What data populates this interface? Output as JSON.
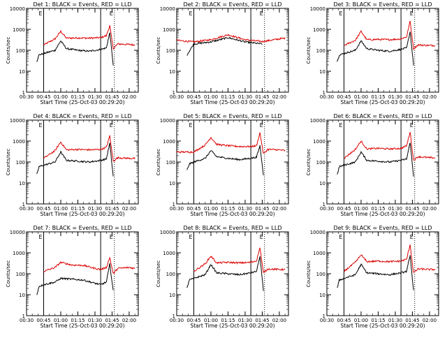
{
  "colors": {
    "events": "#000000",
    "lld": "#dd0000",
    "frame": "#000000"
  },
  "chart_data": [
    {
      "type": "line",
      "title": "Det 1: BLACK = Events, RED = LLD",
      "ylabel": "Counts/sec",
      "xlabel": "Start Time (25-Oct-03 00:29:20)",
      "yscale": "log",
      "ylim": [
        1,
        10000
      ],
      "xlim": [
        "00:30",
        "02:08"
      ],
      "y_ticks": [
        "1",
        "10",
        "100",
        "1000",
        "10000"
      ],
      "x_ticks": [
        "00:30",
        "00:45",
        "01:00",
        "01:15",
        "01:30",
        "01:45",
        "02:00"
      ],
      "markers": {
        "solid": [
          "00:45",
          "01:35"
        ],
        "dotted": [
          "01:47"
        ],
        "labels": [
          "E",
          "E"
        ]
      },
      "series": [
        {
          "color": "#dd0000",
          "x": [
            "00:45",
            "00:55",
            "01:00",
            "01:05",
            "01:15",
            "01:25",
            "01:35",
            "01:40",
            "01:43",
            "01:46",
            "01:50",
            "02:00",
            "02:05"
          ],
          "values": [
            180,
            350,
            800,
            380,
            390,
            380,
            400,
            500,
            1500,
            120,
            200,
            190,
            180
          ]
        },
        {
          "color": "#000000",
          "x": [
            "00:39",
            "00:41",
            "00:45",
            "00:55",
            "01:00",
            "01:05",
            "01:15",
            "01:25",
            "01:35",
            "01:40",
            "01:43",
            "01:46"
          ],
          "values": [
            30,
            60,
            70,
            100,
            280,
            120,
            100,
            90,
            110,
            130,
            700,
            20
          ]
        }
      ]
    },
    {
      "type": "line",
      "title": "Det 2: BLACK = Events, RED = LLD",
      "ylabel": "Counts/sec",
      "xlabel": "Start Time (25-Oct-03 00:29:20)",
      "yscale": "log",
      "ylim": [
        1,
        10000
      ],
      "xlim": [
        "00:30",
        "02:08"
      ],
      "y_ticks": [
        "1",
        "10",
        "100",
        "1000",
        "10000"
      ],
      "x_ticks": [
        "00:30",
        "00:45",
        "01:00",
        "01:15",
        "01:30",
        "01:45",
        "02:00"
      ],
      "markers": {
        "solid": [
          "00:45",
          "01:35"
        ],
        "dotted": [
          "01:47"
        ],
        "labels": [
          "E",
          "E"
        ]
      },
      "series": [
        {
          "color": "#dd0000",
          "x": [
            "00:30",
            "00:45",
            "01:00",
            "01:15",
            "01:30",
            "01:45",
            "02:00",
            "02:05"
          ],
          "values": [
            300,
            250,
            320,
            550,
            320,
            260,
            350,
            380
          ]
        },
        {
          "color": "#000000",
          "x": [
            "00:39",
            "00:45",
            "01:00",
            "01:15",
            "01:30",
            "01:45"
          ],
          "values": [
            60,
            200,
            250,
            400,
            250,
            200
          ]
        }
      ]
    },
    {
      "type": "line",
      "title": "Det 3: BLACK = Events, RED = LLD",
      "ylabel": "Counts/sec",
      "xlabel": "Start Time (25-Oct-03 00:29:20)",
      "yscale": "log",
      "ylim": [
        1,
        10000
      ],
      "xlim": [
        "00:30",
        "02:08"
      ],
      "y_ticks": [
        "1",
        "10",
        "100",
        "1000",
        "10000"
      ],
      "x_ticks": [
        "00:30",
        "00:45",
        "01:00",
        "01:15",
        "01:30",
        "01:45",
        "02:00"
      ],
      "markers": {
        "solid": [
          "00:45",
          "01:35"
        ],
        "dotted": [
          "01:47"
        ],
        "labels": [
          "E",
          "E"
        ]
      },
      "series": [
        {
          "color": "#dd0000",
          "x": [
            "00:45",
            "00:55",
            "01:00",
            "01:05",
            "01:15",
            "01:25",
            "01:35",
            "01:40",
            "01:43",
            "01:46",
            "01:50",
            "02:00",
            "02:05"
          ],
          "values": [
            170,
            300,
            800,
            320,
            330,
            320,
            350,
            450,
            2500,
            120,
            180,
            170,
            170
          ]
        },
        {
          "color": "#000000",
          "x": [
            "00:39",
            "00:41",
            "00:45",
            "00:55",
            "01:00",
            "01:05",
            "01:15",
            "01:25",
            "01:35",
            "01:40",
            "01:43",
            "01:46"
          ],
          "values": [
            30,
            60,
            70,
            100,
            280,
            120,
            100,
            90,
            110,
            130,
            800,
            20
          ]
        }
      ]
    },
    {
      "type": "line",
      "title": "Det 4: BLACK = Events, RED = LLD",
      "ylabel": "Counts/sec",
      "xlabel": "Start Time (25-Oct-03 00:29:20)",
      "yscale": "log",
      "ylim": [
        1,
        10000
      ],
      "xlim": [
        "00:30",
        "02:08"
      ],
      "y_ticks": [
        "1",
        "10",
        "100",
        "1000",
        "10000"
      ],
      "x_ticks": [
        "00:30",
        "00:45",
        "01:00",
        "01:15",
        "01:30",
        "01:45",
        "02:00"
      ],
      "markers": {
        "solid": [
          "00:45",
          "01:35"
        ],
        "dotted": [
          "01:47"
        ],
        "labels": [
          "E",
          "E"
        ]
      },
      "series": [
        {
          "color": "#dd0000",
          "x": [
            "00:45",
            "00:55",
            "01:00",
            "01:05",
            "01:15",
            "01:25",
            "01:35",
            "01:40",
            "01:43",
            "01:46",
            "01:50",
            "02:00",
            "02:05"
          ],
          "values": [
            150,
            350,
            900,
            380,
            400,
            380,
            400,
            500,
            1800,
            110,
            160,
            150,
            150
          ]
        },
        {
          "color": "#000000",
          "x": [
            "00:39",
            "00:41",
            "00:45",
            "00:55",
            "01:00",
            "01:05",
            "01:15",
            "01:25",
            "01:35",
            "01:40",
            "01:43",
            "01:46"
          ],
          "values": [
            25,
            60,
            70,
            100,
            300,
            120,
            110,
            100,
            120,
            140,
            800,
            20
          ]
        }
      ]
    },
    {
      "type": "line",
      "title": "Det 5: BLACK = Events, RED = LLD",
      "ylabel": "Counts/sec",
      "xlabel": "Start Time (25-Oct-03 00:29:20)",
      "yscale": "log",
      "ylim": [
        1,
        10000
      ],
      "xlim": [
        "00:30",
        "02:08"
      ],
      "y_ticks": [
        "1",
        "10",
        "100",
        "1000",
        "10000"
      ],
      "x_ticks": [
        "00:30",
        "00:45",
        "01:00",
        "01:15",
        "01:30",
        "01:45",
        "02:00"
      ],
      "markers": {
        "solid": [
          "00:45",
          "01:35"
        ],
        "dotted": [
          "01:47"
        ],
        "labels": [
          "E",
          "E"
        ]
      },
      "series": [
        {
          "color": "#dd0000",
          "x": [
            "00:30",
            "00:45",
            "00:55",
            "01:00",
            "01:05",
            "01:15",
            "01:25",
            "01:35",
            "01:40",
            "01:43",
            "01:46",
            "01:50",
            "02:00",
            "02:05"
          ],
          "values": [
            300,
            300,
            650,
            1500,
            700,
            600,
            550,
            550,
            600,
            2500,
            250,
            400,
            380,
            350
          ]
        },
        {
          "color": "#000000",
          "x": [
            "00:39",
            "00:41",
            "00:45",
            "00:55",
            "01:00",
            "01:05",
            "01:15",
            "01:25",
            "01:35",
            "01:40",
            "01:43",
            "01:46"
          ],
          "values": [
            40,
            80,
            100,
            150,
            350,
            180,
            150,
            130,
            150,
            170,
            600,
            25
          ]
        }
      ]
    },
    {
      "type": "line",
      "title": "Det 6: BLACK = Events, RED = LLD",
      "ylabel": "Counts/sec",
      "xlabel": "Start Time (25-Oct-03 00:29:20)",
      "yscale": "log",
      "ylim": [
        1,
        10000
      ],
      "xlim": [
        "00:30",
        "02:08"
      ],
      "y_ticks": [
        "1",
        "10",
        "100",
        "1000",
        "10000"
      ],
      "x_ticks": [
        "00:30",
        "00:45",
        "01:00",
        "01:15",
        "01:30",
        "01:45",
        "02:00"
      ],
      "markers": {
        "solid": [
          "00:45",
          "01:35"
        ],
        "dotted": [
          "01:47"
        ],
        "labels": [
          "E",
          "E"
        ]
      },
      "series": [
        {
          "color": "#dd0000",
          "x": [
            "00:45",
            "00:55",
            "01:00",
            "01:05",
            "01:15",
            "01:25",
            "01:35",
            "01:40",
            "01:43",
            "01:46",
            "01:50",
            "02:00",
            "02:05"
          ],
          "values": [
            150,
            400,
            1000,
            420,
            450,
            420,
            450,
            600,
            2800,
            120,
            180,
            160,
            160
          ]
        },
        {
          "color": "#000000",
          "x": [
            "00:39",
            "00:41",
            "00:45",
            "00:55",
            "01:00",
            "01:05",
            "01:15",
            "01:25",
            "01:35",
            "01:40",
            "01:43",
            "01:46"
          ],
          "values": [
            25,
            60,
            70,
            100,
            300,
            120,
            110,
            100,
            120,
            140,
            900,
            20
          ]
        }
      ]
    },
    {
      "type": "line",
      "title": "Det 7: BLACK = Events, RED = LLD",
      "ylabel": "Counts/sec",
      "xlabel": "Start Time (25-Oct-03 00:29:20)",
      "yscale": "log",
      "ylim": [
        1,
        10000
      ],
      "xlim": [
        "00:30",
        "02:08"
      ],
      "y_ticks": [
        "1",
        "10",
        "100",
        "1000",
        "10000"
      ],
      "x_ticks": [
        "00:30",
        "00:45",
        "01:00",
        "01:15",
        "01:30",
        "01:45",
        "02:00"
      ],
      "markers": {
        "solid": [
          "00:45",
          "01:35"
        ],
        "dotted": [
          "01:47"
        ],
        "labels": [
          "E",
          "E"
        ]
      },
      "series": [
        {
          "color": "#dd0000",
          "x": [
            "00:45",
            "00:55",
            "01:00",
            "01:10",
            "01:20",
            "01:30",
            "01:35",
            "01:40",
            "01:43",
            "01:46",
            "01:50",
            "02:00",
            "02:05"
          ],
          "values": [
            130,
            200,
            350,
            260,
            250,
            180,
            160,
            200,
            600,
            100,
            180,
            200,
            180
          ]
        },
        {
          "color": "#000000",
          "x": [
            "00:39",
            "00:41",
            "00:45",
            "00:55",
            "01:00",
            "01:10",
            "01:20",
            "01:30",
            "01:35",
            "01:40",
            "01:43",
            "01:46"
          ],
          "values": [
            10,
            25,
            30,
            40,
            60,
            55,
            50,
            35,
            30,
            40,
            300,
            15
          ]
        }
      ]
    },
    {
      "type": "line",
      "title": "Det 8: BLACK = Events, RED = LLD",
      "ylabel": "Counts/sec",
      "xlabel": "Start Time (25-Oct-03 00:29:20)",
      "yscale": "log",
      "ylim": [
        1,
        10000
      ],
      "xlim": [
        "00:30",
        "02:08"
      ],
      "y_ticks": [
        "1",
        "10",
        "100",
        "1000",
        "10000"
      ],
      "x_ticks": [
        "00:30",
        "00:45",
        "01:00",
        "01:15",
        "01:30",
        "01:45",
        "02:00"
      ],
      "markers": {
        "solid": [
          "00:45",
          "01:35"
        ],
        "dotted": [
          "01:47"
        ],
        "labels": [
          "E",
          "E"
        ]
      },
      "series": [
        {
          "color": "#dd0000",
          "x": [
            "00:45",
            "00:55",
            "01:00",
            "01:05",
            "01:15",
            "01:25",
            "01:35",
            "01:40",
            "01:43",
            "01:46",
            "01:50",
            "02:00",
            "02:05"
          ],
          "values": [
            130,
            300,
            700,
            330,
            350,
            330,
            350,
            420,
            1800,
            110,
            170,
            160,
            160
          ]
        },
        {
          "color": "#000000",
          "x": [
            "00:39",
            "00:41",
            "00:45",
            "00:55",
            "01:00",
            "01:05",
            "01:15",
            "01:25",
            "01:35",
            "01:40",
            "01:43",
            "01:46"
          ],
          "values": [
            20,
            50,
            60,
            90,
            280,
            110,
            100,
            90,
            110,
            130,
            700,
            15
          ]
        }
      ]
    },
    {
      "type": "line",
      "title": "Det 9: BLACK = Events, RED = LLD",
      "ylabel": "Counts/sec",
      "xlabel": "Start Time (25-Oct-03 00:29:20)",
      "yscale": "log",
      "ylim": [
        1,
        10000
      ],
      "xlim": [
        "00:30",
        "02:08"
      ],
      "y_ticks": [
        "1",
        "10",
        "100",
        "1000",
        "10000"
      ],
      "x_ticks": [
        "00:30",
        "00:45",
        "01:00",
        "01:15",
        "01:30",
        "01:45",
        "02:00"
      ],
      "markers": {
        "solid": [
          "00:45",
          "01:35"
        ],
        "dotted": [
          "01:47"
        ],
        "labels": [
          "E",
          "E"
        ]
      },
      "series": [
        {
          "color": "#dd0000",
          "x": [
            "00:45",
            "00:55",
            "01:00",
            "01:05",
            "01:15",
            "01:25",
            "01:35",
            "01:40",
            "01:43",
            "01:46",
            "01:50",
            "02:00",
            "02:05"
          ],
          "values": [
            130,
            350,
            800,
            380,
            400,
            380,
            400,
            500,
            2500,
            110,
            170,
            160,
            160
          ]
        },
        {
          "color": "#000000",
          "x": [
            "00:39",
            "00:41",
            "00:45",
            "00:55",
            "01:00",
            "01:05",
            "01:15",
            "01:25",
            "01:35",
            "01:40",
            "01:43",
            "01:46"
          ],
          "values": [
            20,
            50,
            60,
            90,
            280,
            110,
            100,
            90,
            110,
            130,
            800,
            15
          ]
        }
      ]
    }
  ]
}
